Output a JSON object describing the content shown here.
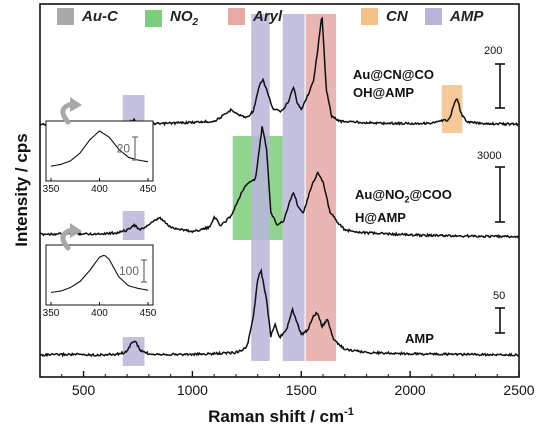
{
  "chart_data": {
    "type": "line",
    "xlabel": "Raman shift / cm",
    "xlabel_sup": "-1",
    "ylabel": "Intensity / cps",
    "xlim": [
      300,
      2500
    ],
    "x_ticks": [
      "500",
      "1000",
      "1500",
      "2000",
      "2500"
    ],
    "legend": [
      {
        "name": "Au-C",
        "color": "#a9a9a9"
      },
      {
        "name": "NO",
        "sub": "2",
        "color": "#7ccd7c"
      },
      {
        "name": "Aryl",
        "color": "#e6a9a6"
      },
      {
        "name": "CN",
        "color": "#f5c08a"
      },
      {
        "name": "AMP",
        "color": "#b9b5da"
      }
    ],
    "bands": [
      {
        "group": "AMP",
        "from": 680,
        "to": 780,
        "series": "top"
      },
      {
        "group": "AMP",
        "from": 680,
        "to": 780,
        "series": "middle"
      },
      {
        "group": "AMP",
        "from": 680,
        "to": 780,
        "series": "bottom"
      },
      {
        "group": "NO2",
        "from": 1185,
        "to": 1415,
        "series": "middle"
      },
      {
        "group": "AMP",
        "from": 1270,
        "to": 1355,
        "series": "all"
      },
      {
        "group": "AMP",
        "from": 1415,
        "to": 1515,
        "series": "all"
      },
      {
        "group": "Aryl",
        "from": 1520,
        "to": 1660,
        "series": "all"
      },
      {
        "group": "CN",
        "from": 2145,
        "to": 2240,
        "series": "top"
      }
    ],
    "series": [
      {
        "name": "Au@CN@COOH@AMP",
        "label_lines": [
          "Au@CN@CO",
          "OH@AMP"
        ],
        "scale_bar": "200",
        "x": [
          300,
          450,
          550,
          650,
          700,
          730,
          760,
          800,
          850,
          900,
          1000,
          1100,
          1150,
          1180,
          1210,
          1250,
          1280,
          1310,
          1325,
          1340,
          1370,
          1410,
          1440,
          1465,
          1480,
          1500,
          1530,
          1555,
          1575,
          1595,
          1615,
          1640,
          1680,
          1750,
          1850,
          2000,
          2100,
          2180,
          2200,
          2215,
          2235,
          2260,
          2320,
          2400,
          2500
        ],
        "y": [
          2,
          3,
          2,
          3,
          5,
          14,
          5,
          4,
          3,
          5,
          7,
          10,
          28,
          42,
          28,
          20,
          38,
          110,
          120,
          96,
          42,
          36,
          62,
          104,
          60,
          42,
          80,
          115,
          200,
          295,
          96,
          22,
          10,
          8,
          5,
          4,
          5,
          15,
          52,
          74,
          30,
          8,
          5,
          3,
          2
        ]
      },
      {
        "name": "Au@NO2@COOH@AMP",
        "label_lines": [
          "Au@NO",
          "@COO",
          "H@AMP"
        ],
        "label_sub": "2",
        "scale_bar": "3000",
        "x": [
          300,
          450,
          550,
          650,
          700,
          730,
          760,
          800,
          850,
          900,
          1000,
          1080,
          1100,
          1130,
          1180,
          1230,
          1260,
          1290,
          1320,
          1340,
          1360,
          1390,
          1420,
          1450,
          1465,
          1485,
          1510,
          1545,
          1575,
          1600,
          1630,
          1660,
          1700,
          1800,
          2000,
          2200,
          2500
        ],
        "y": [
          200,
          250,
          220,
          300,
          500,
          900,
          500,
          900,
          1400,
          700,
          400,
          700,
          1500,
          800,
          1600,
          3400,
          4000,
          4200,
          8000,
          6500,
          1800,
          900,
          1200,
          2700,
          3300,
          2200,
          1800,
          3600,
          4700,
          4000,
          1900,
          1200,
          500,
          300,
          150,
          80,
          20
        ]
      },
      {
        "name": "AMP",
        "label_lines": [
          "AMP"
        ],
        "scale_bar": "50",
        "x": [
          300,
          450,
          550,
          650,
          700,
          720,
          740,
          760,
          800,
          900,
          1000,
          1100,
          1200,
          1250,
          1280,
          1300,
          1315,
          1340,
          1360,
          1380,
          1400,
          1430,
          1460,
          1480,
          1500,
          1530,
          1555,
          1575,
          1595,
          1620,
          1650,
          1700,
          1800,
          2000,
          2200,
          2500
        ],
        "y": [
          0,
          1,
          0,
          1,
          5,
          20,
          21,
          7,
          2,
          1,
          1,
          2,
          4,
          12,
          60,
          120,
          135,
          88,
          30,
          48,
          28,
          38,
          72,
          52,
          32,
          40,
          62,
          68,
          45,
          56,
          24,
          9,
          4,
          2,
          1,
          0
        ]
      }
    ],
    "insets": [
      {
        "x_ticks": [
          "350",
          "400",
          "450"
        ],
        "scale_bar": "20",
        "x": [
          350,
          360,
          370,
          380,
          390,
          400,
          410,
          420,
          430,
          440,
          450
        ],
        "y": [
          0.2,
          0.24,
          0.32,
          0.5,
          0.8,
          1.0,
          0.86,
          0.58,
          0.4,
          0.34,
          0.3
        ]
      },
      {
        "x_ticks": [
          "350",
          "400",
          "450"
        ],
        "scale_bar": "100",
        "x": [
          350,
          360,
          370,
          380,
          390,
          400,
          405,
          410,
          420,
          430,
          440,
          450
        ],
        "y": [
          0.15,
          0.18,
          0.26,
          0.4,
          0.65,
          0.95,
          1.0,
          0.9,
          0.5,
          0.3,
          0.24,
          0.2
        ]
      }
    ]
  }
}
